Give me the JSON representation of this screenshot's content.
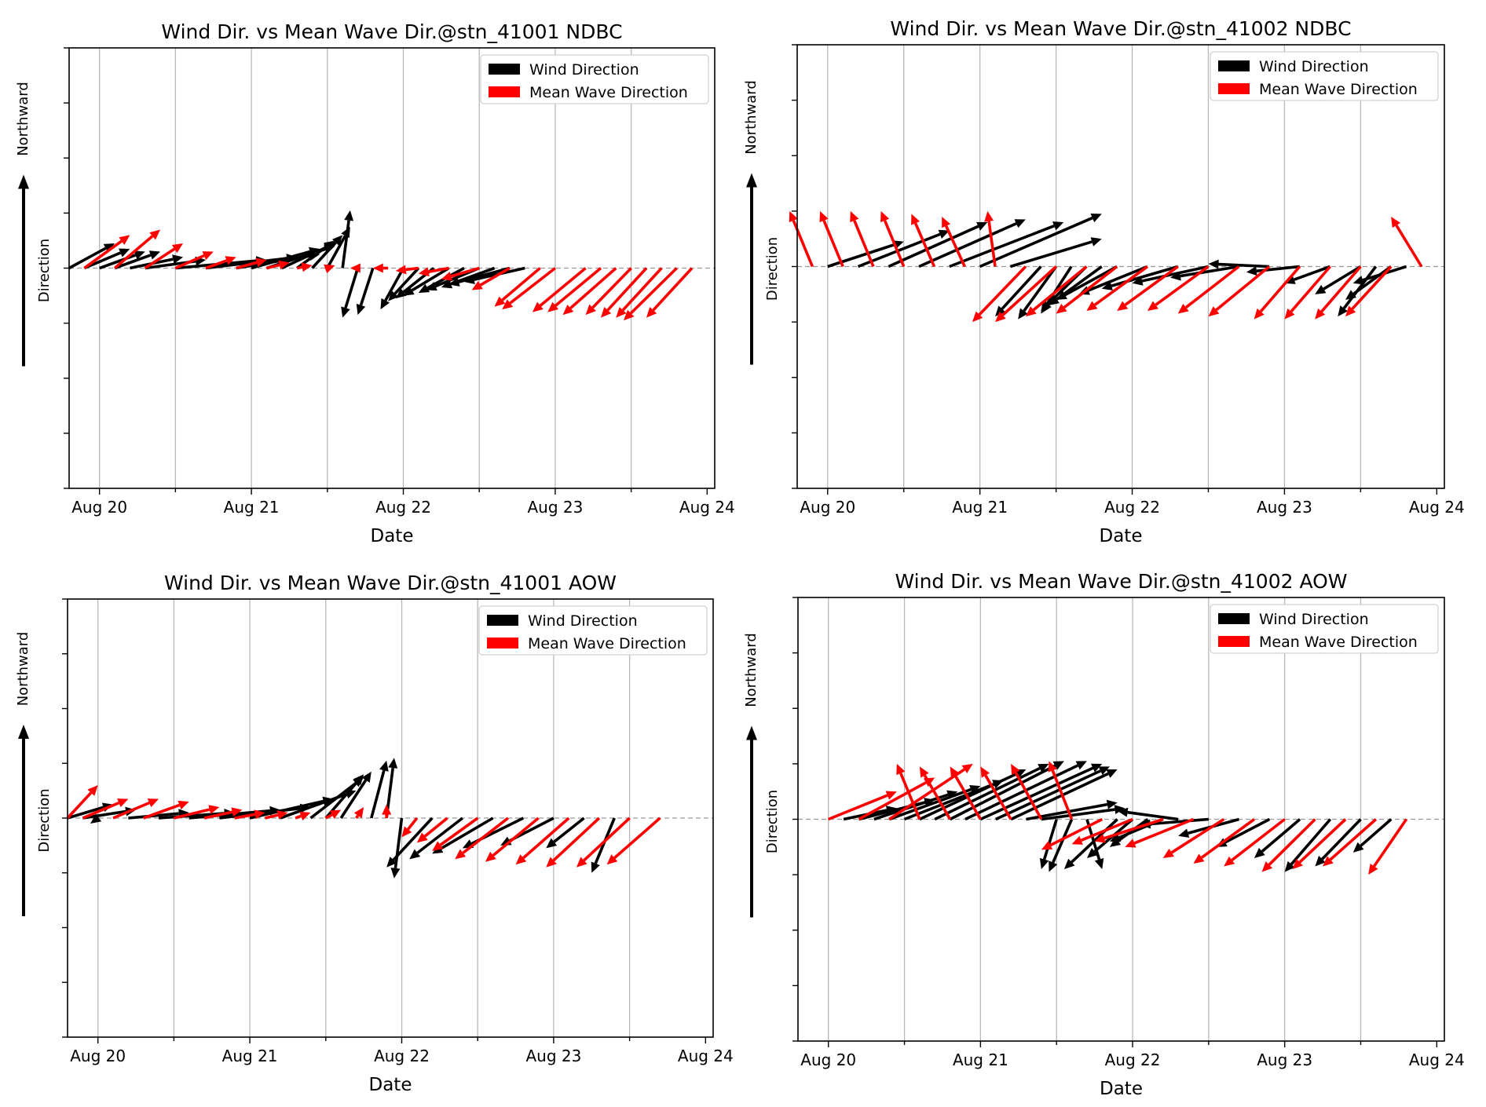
{
  "colors": {
    "wind": "#000000",
    "wave": "#ff0000",
    "grid": "#b8b8b8",
    "zero": "#999999"
  },
  "chart_data": [
    {
      "type": "quiver",
      "title": "Wind Dir. vs Mean Wave Dir.@stn_41001 NDBC",
      "xlabel": "Date",
      "side_label_top": "Northward",
      "side_label_mid": "Direction",
      "x_ticks": [
        "Aug 20",
        "Aug 21",
        "Aug 22",
        "Aug 23",
        "Aug 24"
      ],
      "xlim": [
        -0.2,
        4.05
      ],
      "ylim": [
        -4,
        4
      ],
      "legend": [
        "Wind Direction",
        "Mean Wave Direction"
      ],
      "legend_position": "upper right",
      "series": [
        {
          "name": "Wind Direction",
          "x": [
            -0.2,
            -0.1,
            0.0,
            0.1,
            0.2,
            0.3,
            0.5,
            0.7,
            0.9,
            1.0,
            1.1,
            1.2,
            1.3,
            1.4,
            1.5,
            1.6,
            1.7,
            1.8,
            2.0,
            2.1,
            2.2,
            2.3,
            2.4,
            2.5,
            2.6,
            2.7,
            2.8
          ],
          "u": [
            0.3,
            0.3,
            0.3,
            0.3,
            0.35,
            0.4,
            0.6,
            0.6,
            0.55,
            0.45,
            0.45,
            0.35,
            0.25,
            0.2,
            0.15,
            0.05,
            -0.1,
            -0.1,
            -0.15,
            -0.2,
            -0.25,
            -0.3,
            -0.3,
            -0.35,
            -0.35,
            -0.4,
            -0.4
          ],
          "v": [
            0.45,
            0.35,
            0.3,
            0.3,
            0.2,
            0.15,
            0.15,
            0.2,
            0.25,
            0.35,
            0.4,
            0.45,
            0.5,
            0.6,
            0.75,
            1.05,
            -0.9,
            -0.85,
            -0.75,
            -0.6,
            -0.55,
            -0.5,
            -0.45,
            -0.4,
            -0.35,
            -0.3,
            -0.25
          ]
        },
        {
          "name": "Mean Wave Direction",
          "x": [
            -0.1,
            0.1,
            0.3,
            0.5,
            0.7,
            0.9,
            1.1,
            1.3,
            1.5,
            1.7,
            1.9,
            2.1,
            2.3,
            2.5,
            2.7,
            2.9,
            3.0,
            3.2,
            3.3,
            3.4,
            3.5,
            3.6,
            3.7,
            3.8,
            3.9
          ],
          "u": [
            0.3,
            0.3,
            0.25,
            0.25,
            0.2,
            0.2,
            0.15,
            0.1,
            0.05,
            -0.05,
            -0.1,
            -0.15,
            -0.2,
            -0.25,
            -0.25,
            -0.3,
            -0.35,
            -0.35,
            -0.35,
            -0.35,
            -0.3,
            -0.3,
            -0.3,
            -0.35,
            -0.3
          ],
          "v": [
            0.6,
            0.7,
            0.45,
            0.3,
            0.2,
            0.15,
            0.1,
            0.05,
            0.05,
            0.0,
            0.0,
            -0.05,
            -0.1,
            -0.2,
            -0.4,
            -0.7,
            -0.75,
            -0.8,
            -0.8,
            -0.85,
            -0.85,
            -0.9,
            -0.9,
            -0.95,
            -0.9
          ]
        }
      ]
    },
    {
      "type": "quiver",
      "title": "Wind Dir. vs Mean Wave Dir.@stn_41002 NDBC",
      "xlabel": "Date",
      "side_label_top": "Northward",
      "side_label_mid": "Direction",
      "x_ticks": [
        "Aug 20",
        "Aug 21",
        "Aug 22",
        "Aug 23",
        "Aug 24"
      ],
      "xlim": [
        -0.2,
        4.05
      ],
      "ylim": [
        -4,
        4
      ],
      "legend": [
        "Wind Direction",
        "Mean Wave Direction"
      ],
      "legend_position": "upper right",
      "series": [
        {
          "name": "Wind Direction",
          "x": [
            0.0,
            0.2,
            0.4,
            0.6,
            0.8,
            1.0,
            1.2,
            1.4,
            1.5,
            1.6,
            1.7,
            1.8,
            1.9,
            2.1,
            2.3,
            2.5,
            2.7,
            2.9,
            3.1,
            3.3,
            3.5,
            3.6,
            3.7,
            3.8
          ],
          "u": [
            0.5,
            0.6,
            0.65,
            0.7,
            0.75,
            0.8,
            0.6,
            -0.3,
            -0.25,
            -0.2,
            -0.3,
            -0.35,
            -0.4,
            -0.45,
            -0.5,
            -0.5,
            -0.45,
            -0.4,
            -0.35,
            -0.3,
            -0.3,
            -0.25,
            -0.3,
            -0.35
          ],
          "v": [
            0.45,
            0.65,
            0.8,
            0.85,
            0.8,
            0.95,
            0.5,
            -0.9,
            -0.95,
            -0.85,
            -0.8,
            -0.7,
            -0.6,
            -0.5,
            -0.4,
            -0.3,
            -0.2,
            0.05,
            -0.1,
            -0.3,
            -0.5,
            -0.9,
            -0.6,
            -0.3
          ]
        },
        {
          "name": "Mean Wave Direction",
          "x": [
            -0.1,
            0.1,
            0.3,
            0.5,
            0.7,
            0.9,
            1.1,
            1.3,
            1.5,
            1.7,
            1.9,
            2.1,
            2.3,
            2.5,
            2.7,
            2.9,
            3.1,
            3.3,
            3.5,
            3.7,
            3.9
          ],
          "u": [
            -0.15,
            -0.15,
            -0.15,
            -0.15,
            -0.15,
            -0.15,
            -0.05,
            -0.35,
            -0.4,
            -0.4,
            -0.4,
            -0.4,
            -0.4,
            -0.4,
            -0.4,
            -0.4,
            -0.3,
            -0.3,
            -0.3,
            -0.3,
            -0.2
          ],
          "v": [
            1.0,
            1.0,
            1.0,
            1.0,
            0.95,
            0.9,
            1.0,
            -1.0,
            -1.0,
            -0.9,
            -0.85,
            -0.8,
            -0.8,
            -0.8,
            -0.85,
            -0.9,
            -0.95,
            -0.95,
            -0.95,
            -0.9,
            0.9
          ]
        }
      ]
    },
    {
      "type": "quiver",
      "title": "Wind Dir. vs Mean Wave Dir.@stn_41001 AOW",
      "xlabel": "Date",
      "side_label_top": "Northward",
      "side_label_mid": "Direction",
      "x_ticks": [
        "Aug 20",
        "Aug 21",
        "Aug 22",
        "Aug 23",
        "Aug 24"
      ],
      "xlim": [
        -0.2,
        4.05
      ],
      "ylim": [
        -4,
        4
      ],
      "legend": [
        "Wind Direction",
        "Mean Wave Direction"
      ],
      "legend_position": "upper right",
      "series": [
        {
          "name": "Wind Direction",
          "x": [
            -0.2,
            -0.1,
            0.0,
            0.2,
            0.4,
            0.6,
            0.8,
            1.0,
            1.2,
            1.4,
            1.5,
            1.6,
            1.8,
            1.9,
            2.0,
            2.2,
            2.4,
            2.6,
            2.8,
            3.0,
            3.2,
            3.4
          ],
          "u": [
            0.3,
            0.35,
            -0.05,
            0.4,
            0.5,
            0.6,
            0.6,
            0.55,
            0.5,
            0.35,
            0.25,
            0.2,
            0.1,
            0.05,
            -0.05,
            -0.3,
            -0.35,
            -0.4,
            -0.4,
            -0.35,
            -0.25,
            -0.15
          ],
          "v": [
            0.25,
            0.15,
            -0.1,
            0.1,
            0.1,
            0.15,
            0.2,
            0.35,
            0.5,
            0.75,
            0.8,
            0.85,
            1.05,
            1.1,
            -1.1,
            -0.9,
            -0.75,
            -0.65,
            -0.55,
            -0.5,
            -0.55,
            -1.0
          ]
        },
        {
          "name": "Mean Wave Direction",
          "x": [
            -0.2,
            -0.1,
            0.1,
            0.3,
            0.5,
            0.7,
            0.9,
            1.1,
            1.3,
            1.5,
            1.7,
            1.9,
            2.1,
            2.3,
            2.5,
            2.7,
            2.9,
            3.1,
            3.3,
            3.5,
            3.7
          ],
          "u": [
            0.2,
            0.3,
            0.3,
            0.3,
            0.3,
            0.25,
            0.2,
            0.15,
            0.1,
            0.1,
            0.05,
            0.0,
            -0.1,
            -0.2,
            -0.3,
            -0.35,
            -0.35,
            -0.35,
            -0.35,
            -0.35,
            -0.35
          ],
          "v": [
            0.6,
            0.35,
            0.35,
            0.3,
            0.2,
            0.15,
            0.1,
            0.1,
            0.1,
            0.15,
            0.2,
            0.25,
            -0.35,
            -0.45,
            -0.6,
            -0.75,
            -0.8,
            -0.85,
            -0.9,
            -0.9,
            -0.85
          ]
        }
      ]
    },
    {
      "type": "quiver",
      "title": "Wind Dir. vs Mean Wave Dir.@stn_41002 AOW",
      "xlabel": "Date",
      "side_label_top": "Northward",
      "side_label_mid": "Direction",
      "x_ticks": [
        "Aug 20",
        "Aug 21",
        "Aug 22",
        "Aug 23",
        "Aug 24"
      ],
      "xlim": [
        -0.2,
        4.05
      ],
      "ylim": [
        -4,
        4
      ],
      "legend": [
        "Wind Direction",
        "Mean Wave Direction"
      ],
      "legend_position": "upper right",
      "series": [
        {
          "name": "Wind Direction",
          "x": [
            0.1,
            0.2,
            0.3,
            0.4,
            0.5,
            0.6,
            0.7,
            0.8,
            0.9,
            1.0,
            1.1,
            1.2,
            1.3,
            1.4,
            1.5,
            1.6,
            1.7,
            1.9,
            2.0,
            2.1,
            2.2,
            2.3,
            2.5,
            2.7,
            2.9,
            3.1,
            3.3,
            3.5,
            3.7
          ],
          "u": [
            0.35,
            0.5,
            0.55,
            0.6,
            0.65,
            0.7,
            0.75,
            0.75,
            0.8,
            0.8,
            0.75,
            0.7,
            0.6,
            0.55,
            -0.1,
            -0.15,
            0.1,
            -0.35,
            -0.3,
            -0.25,
            -0.35,
            -0.4,
            -0.45,
            -0.4,
            -0.35,
            -0.3,
            -0.3,
            -0.3,
            -0.25
          ],
          "v": [
            0.2,
            0.35,
            0.5,
            0.6,
            0.7,
            0.9,
            1.0,
            1.05,
            1.05,
            1.0,
            0.95,
            0.9,
            0.3,
            0.2,
            -0.9,
            -0.95,
            -0.9,
            -0.9,
            -0.7,
            -0.5,
            -0.4,
            0.15,
            -0.1,
            -0.3,
            -0.5,
            -0.7,
            -0.95,
            -0.85,
            -0.6
          ]
        },
        {
          "name": "Mean Wave Direction",
          "x": [
            0.0,
            0.2,
            0.4,
            0.6,
            0.8,
            1.0,
            1.2,
            1.4,
            1.6,
            1.8,
            2.0,
            2.2,
            2.4,
            2.6,
            2.8,
            3.0,
            3.2,
            3.4,
            3.6,
            3.8
          ],
          "u": [
            0.45,
            0.5,
            0.55,
            -0.15,
            -0.2,
            -0.2,
            -0.2,
            -0.2,
            -0.15,
            -0.4,
            -0.4,
            -0.45,
            -0.45,
            -0.4,
            -0.4,
            -0.4,
            -0.35,
            -0.35,
            -0.35,
            -0.25
          ],
          "v": [
            0.5,
            0.75,
            1.0,
            1.0,
            0.95,
            0.95,
            0.95,
            1.0,
            1.05,
            -0.55,
            -0.45,
            -0.4,
            -0.5,
            -0.7,
            -0.8,
            -0.85,
            -0.95,
            -0.9,
            -0.85,
            -1.0
          ]
        }
      ]
    }
  ]
}
